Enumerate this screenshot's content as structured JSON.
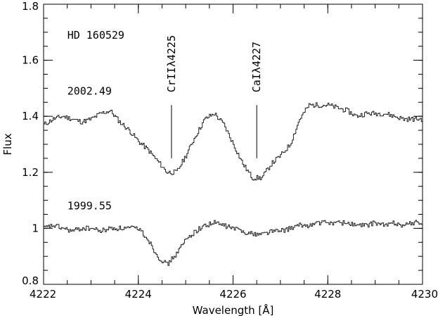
{
  "chart_data": {
    "type": "line",
    "xlabel": "Wavelength [Å]",
    "ylabel": "Flux",
    "xlim": [
      4222,
      4230
    ],
    "ylim": [
      0.8,
      1.8
    ],
    "x_ticks": [
      4222,
      4224,
      4226,
      4228,
      4230
    ],
    "y_ticks": [
      0.8,
      1,
      1.2,
      1.4,
      1.6,
      1.8
    ],
    "x_tick_labels": [
      "4222",
      "4224",
      "4226",
      "4228",
      "4230"
    ],
    "y_tick_labels": [
      "0.8",
      "1",
      "1.2",
      "1.4",
      "1.6",
      "1.8"
    ],
    "x_minor_step": 0.5,
    "y_minor_step": 0.05,
    "grid": false,
    "object_label": "HD  160529",
    "line_markers": [
      {
        "label": "CrIIλ4225",
        "x": 4224.7,
        "y_top": 1.44,
        "y_bottom": 1.25
      },
      {
        "label": "CaIλ4227",
        "x": 4226.5,
        "y_top": 1.44,
        "y_bottom": 1.25
      }
    ],
    "series": [
      {
        "name": "2002.49",
        "style": "steps",
        "label_at": [
          4222.5,
          1.49
        ],
        "x": [
          4222.0,
          4222.2,
          4222.4,
          4222.6,
          4222.8,
          4223.0,
          4223.2,
          4223.4,
          4223.6,
          4223.8,
          4224.0,
          4224.2,
          4224.4,
          4224.6,
          4224.8,
          4225.0,
          4225.2,
          4225.4,
          4225.6,
          4225.8,
          4226.0,
          4226.2,
          4226.4,
          4226.6,
          4226.8,
          4227.0,
          4227.2,
          4227.4,
          4227.6,
          4227.8,
          4228.0,
          4228.2,
          4228.4,
          4228.6,
          4228.8,
          4229.0,
          4229.2,
          4229.4,
          4229.6,
          4229.8,
          4230.0
        ],
        "y": [
          1.37,
          1.39,
          1.4,
          1.39,
          1.38,
          1.39,
          1.41,
          1.42,
          1.38,
          1.35,
          1.31,
          1.28,
          1.24,
          1.2,
          1.2,
          1.26,
          1.33,
          1.39,
          1.41,
          1.37,
          1.3,
          1.23,
          1.18,
          1.18,
          1.23,
          1.26,
          1.3,
          1.39,
          1.44,
          1.44,
          1.44,
          1.43,
          1.42,
          1.4,
          1.41,
          1.41,
          1.41,
          1.4,
          1.39,
          1.39,
          1.39
        ]
      },
      {
        "name": "1999.55",
        "style": "steps",
        "label_at": [
          4222.5,
          1.08
        ],
        "x": [
          4222.0,
          4222.2,
          4222.4,
          4222.6,
          4222.8,
          4223.0,
          4223.2,
          4223.4,
          4223.6,
          4223.8,
          4224.0,
          4224.2,
          4224.4,
          4224.6,
          4224.8,
          4225.0,
          4225.2,
          4225.4,
          4225.6,
          4225.8,
          4226.0,
          4226.2,
          4226.4,
          4226.6,
          4226.8,
          4227.0,
          4227.2,
          4227.4,
          4227.6,
          4227.8,
          4228.0,
          4228.2,
          4228.4,
          4228.6,
          4228.8,
          4229.0,
          4229.2,
          4229.4,
          4229.6,
          4229.8,
          4230.0
        ],
        "y": [
          1.0,
          1.01,
          1.0,
          0.99,
          1.0,
          1.0,
          0.99,
          1.0,
          1.0,
          1.0,
          1.0,
          0.96,
          0.9,
          0.87,
          0.91,
          0.96,
          0.99,
          1.01,
          1.02,
          1.01,
          1.0,
          0.99,
          0.98,
          0.98,
          0.99,
          0.99,
          1.0,
          1.01,
          1.01,
          1.02,
          1.02,
          1.02,
          1.02,
          1.01,
          1.01,
          1.02,
          1.01,
          1.02,
          1.01,
          1.02,
          1.02
        ]
      }
    ]
  }
}
